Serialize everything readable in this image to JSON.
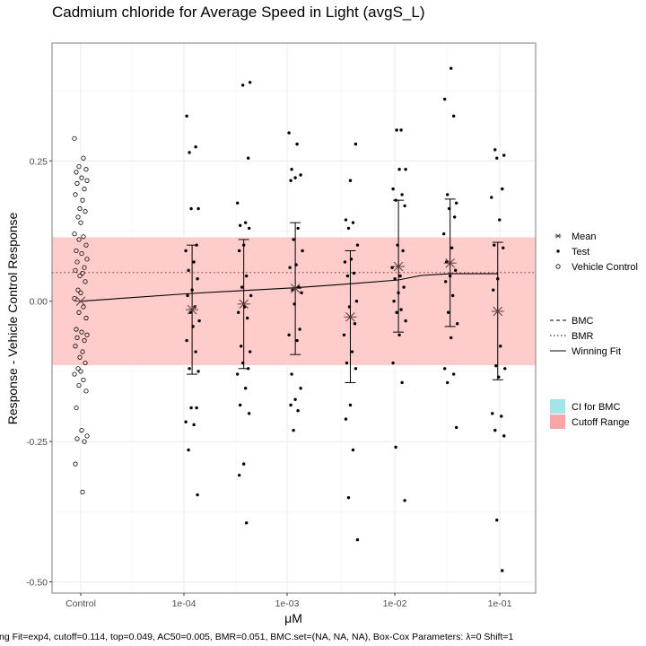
{
  "chart_data": {
    "type": "scatter",
    "title": "Cadmium chloride for Average Speed in Light (avgS_L)",
    "xlabel": "μM",
    "ylabel": "Response - Vehicle Control Response",
    "x_scale": "log10",
    "x_tick_labels": [
      "Control",
      "1e-04",
      "1e-03",
      "1e-02",
      "1e-01"
    ],
    "y_tick_labels": [
      "0.25",
      "0.00",
      "-0.25",
      "-0.50"
    ],
    "y_ticks": [
      0.25,
      0.0,
      -0.25,
      -0.5
    ],
    "ylim": [
      -0.52,
      0.46
    ],
    "grid": true,
    "legend_placement": "right",
    "cutoff_range": [
      -0.114,
      0.114
    ],
    "bmr_line": 0.051,
    "vehicle_control": [
      0.29,
      0.255,
      0.24,
      0.235,
      0.23,
      0.22,
      0.215,
      0.21,
      0.2,
      0.19,
      0.18,
      0.165,
      0.16,
      0.15,
      0.14,
      0.12,
      0.115,
      0.11,
      0.1,
      0.09,
      0.085,
      0.075,
      0.07,
      0.06,
      0.055,
      0.05,
      0.045,
      0.035,
      0.02,
      0.015,
      0.005,
      -0.01,
      -0.02,
      -0.03,
      -0.05,
      -0.055,
      -0.06,
      -0.065,
      -0.07,
      -0.08,
      -0.09,
      -0.1,
      -0.11,
      -0.12,
      -0.125,
      -0.13,
      -0.14,
      -0.15,
      -0.16,
      -0.19,
      -0.23,
      -0.24,
      -0.245,
      -0.25,
      -0.29,
      -0.34
    ],
    "test_groups": [
      {
        "conc": 0.00012,
        "values": [
          0.33,
          0.275,
          0.265,
          0.165,
          0.165,
          0.1,
          0.09,
          0.07,
          0.055,
          0.04,
          0.02,
          0.01,
          -0.01,
          -0.02,
          -0.035,
          -0.045,
          -0.07,
          -0.09,
          -0.12,
          -0.125,
          -0.19,
          -0.19,
          -0.215,
          -0.22,
          -0.265,
          -0.345
        ]
      },
      {
        "conc": 0.00038,
        "values": [
          0.39,
          0.385,
          0.255,
          0.175,
          0.14,
          0.135,
          0.13,
          0.1,
          0.09,
          0.045,
          0.025,
          0.01,
          -0.01,
          -0.02,
          -0.03,
          -0.08,
          -0.09,
          -0.11,
          -0.12,
          -0.13,
          -0.155,
          -0.185,
          -0.2,
          -0.29,
          -0.31,
          -0.395
        ]
      },
      {
        "conc": 0.0012,
        "values": [
          0.3,
          0.28,
          0.235,
          0.225,
          0.22,
          0.215,
          0.13,
          0.11,
          0.09,
          0.065,
          0.06,
          0.025,
          0.02,
          0.015,
          -0.005,
          -0.05,
          -0.06,
          -0.07,
          -0.13,
          -0.155,
          -0.175,
          -0.185,
          -0.195,
          -0.23
        ]
      },
      {
        "conc": 0.0041,
        "values": [
          0.28,
          0.215,
          0.145,
          0.14,
          0.13,
          0.1,
          0.075,
          0.07,
          0.05,
          0.045,
          0.0,
          -0.01,
          -0.04,
          -0.06,
          -0.09,
          -0.11,
          -0.12,
          -0.185,
          -0.21,
          -0.265,
          -0.35,
          -0.425
        ]
      },
      {
        "conc": 0.012,
        "values": [
          0.305,
          0.305,
          0.235,
          0.235,
          0.2,
          0.19,
          0.18,
          0.17,
          0.1,
          0.09,
          0.06,
          0.045,
          0.04,
          0.025,
          0.015,
          0.0,
          -0.015,
          -0.02,
          -0.035,
          -0.06,
          -0.11,
          -0.145,
          -0.26,
          -0.355
        ]
      },
      {
        "conc": 0.038,
        "values": [
          0.415,
          0.36,
          0.33,
          0.19,
          0.175,
          0.165,
          0.15,
          0.12,
          0.095,
          0.07,
          0.055,
          0.045,
          0.035,
          0.01,
          -0.02,
          -0.04,
          -0.065,
          -0.12,
          -0.13,
          -0.145,
          -0.225
        ]
      },
      {
        "conc": 0.11,
        "values": [
          0.27,
          0.26,
          0.255,
          0.2,
          0.185,
          0.145,
          0.1,
          0.095,
          0.04,
          0.02,
          -0.08,
          -0.115,
          -0.12,
          -0.135,
          -0.2,
          -0.205,
          -0.23,
          -0.24,
          -0.39,
          -0.48
        ]
      }
    ],
    "means": [
      {
        "conc": "Control",
        "value": 0.0
      },
      {
        "conc": 0.00012,
        "value": -0.015,
        "ci": [
          -0.13,
          0.1
        ]
      },
      {
        "conc": 0.00038,
        "value": -0.005,
        "ci": [
          -0.12,
          0.11
        ]
      },
      {
        "conc": 0.0012,
        "value": 0.023,
        "ci": [
          -0.095,
          0.14
        ]
      },
      {
        "conc": 0.0041,
        "value": -0.028,
        "ci": [
          -0.145,
          0.09
        ]
      },
      {
        "conc": 0.012,
        "value": 0.062,
        "ci": [
          -0.055,
          0.18
        ]
      },
      {
        "conc": 0.038,
        "value": 0.068,
        "ci": [
          -0.045,
          0.182
        ]
      },
      {
        "conc": 0.11,
        "value": -0.018,
        "ci": [
          -0.14,
          0.105
        ]
      }
    ],
    "winning_fit_curve": {
      "x": [
        "Control",
        0.00012,
        0.00038,
        0.0012,
        0.0041,
        0.012,
        0.02,
        0.038,
        0.11
      ],
      "y": [
        0.0,
        0.014,
        0.019,
        0.024,
        0.031,
        0.038,
        0.046,
        0.049,
        0.049
      ]
    },
    "legend_shapes": [
      {
        "label": "Mean",
        "symbol": "asterisk"
      },
      {
        "label": "Test",
        "symbol": "dot"
      },
      {
        "label": "Vehicle Control",
        "symbol": "open-circle"
      }
    ],
    "legend_lines": [
      {
        "label": "BMC",
        "style": "dashed"
      },
      {
        "label": "BMR",
        "style": "dotted"
      },
      {
        "label": "Winning Fit",
        "style": "solid"
      }
    ],
    "legend_fills": [
      {
        "label": "CI for BMC",
        "color": "#a3e4e8"
      },
      {
        "label": "Cutoff Range",
        "color": "#f8a5a5"
      }
    ],
    "colors": {
      "cutoff_band": "#ffcccc",
      "panel_border": "#7f7f7f",
      "grid": "#ebebeb"
    },
    "footer": "ng Fit=exp4, cutoff=0.114, top=0.049, AC50=0.005, BMR=0.051, BMC.set=(NA, NA, NA), Box-Cox Parameters: λ=0 Shift=1"
  }
}
